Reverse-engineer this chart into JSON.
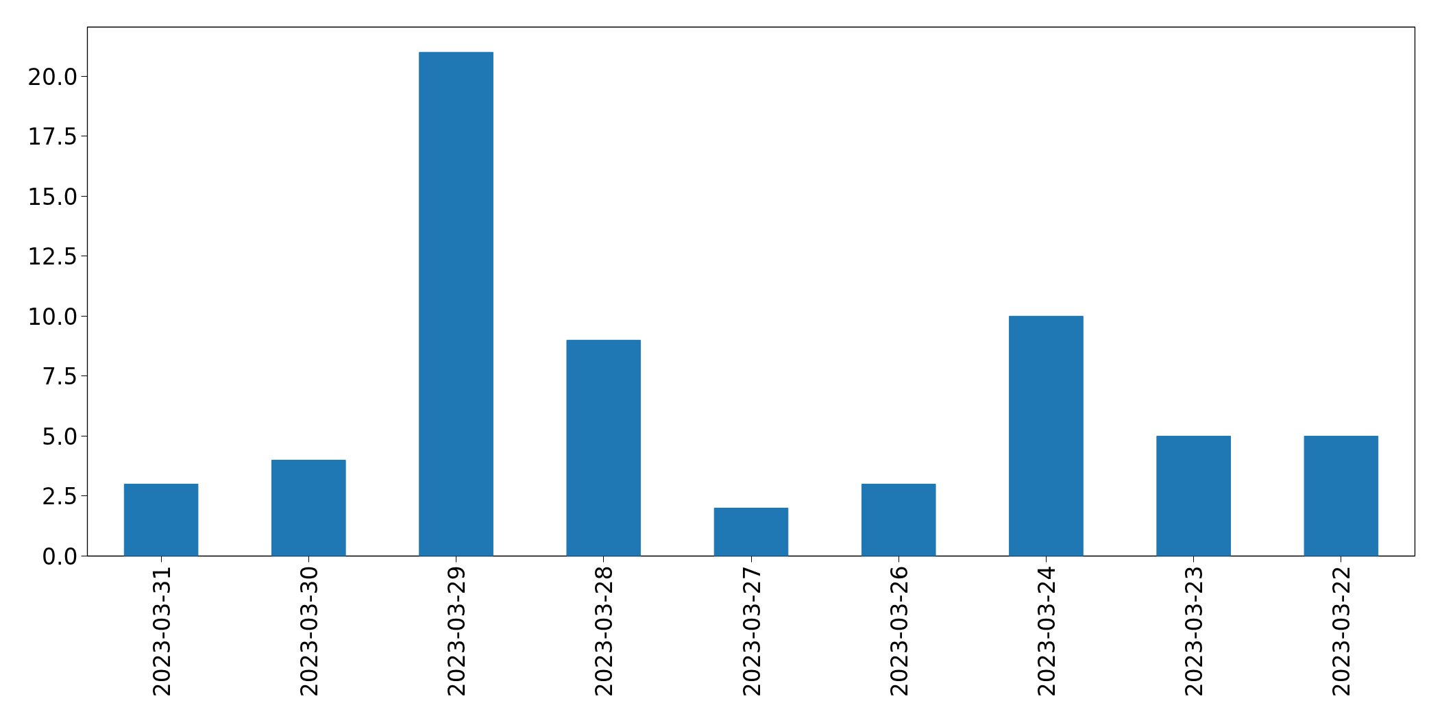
{
  "chart_data": {
    "type": "bar",
    "categories": [
      "2023-03-31",
      "2023-03-30",
      "2023-03-29",
      "2023-03-28",
      "2023-03-27",
      "2023-03-26",
      "2023-03-24",
      "2023-03-23",
      "2023-03-22"
    ],
    "values": [
      3,
      4,
      21,
      9,
      2,
      3,
      10,
      5,
      5
    ],
    "color": "#1f77b4",
    "ylim": [
      0,
      22.05
    ],
    "yticks": [
      {
        "value": 0,
        "label": "0.0"
      },
      {
        "value": 2.5,
        "label": "2.5"
      },
      {
        "value": 5,
        "label": "5.0"
      },
      {
        "value": 7.5,
        "label": "7.5"
      },
      {
        "value": 10,
        "label": "10.0"
      },
      {
        "value": 12.5,
        "label": "12.5"
      },
      {
        "value": 15,
        "label": "15.0"
      },
      {
        "value": 17.5,
        "label": "17.5"
      },
      {
        "value": 20,
        "label": "20.0"
      }
    ],
    "grid": false
  }
}
